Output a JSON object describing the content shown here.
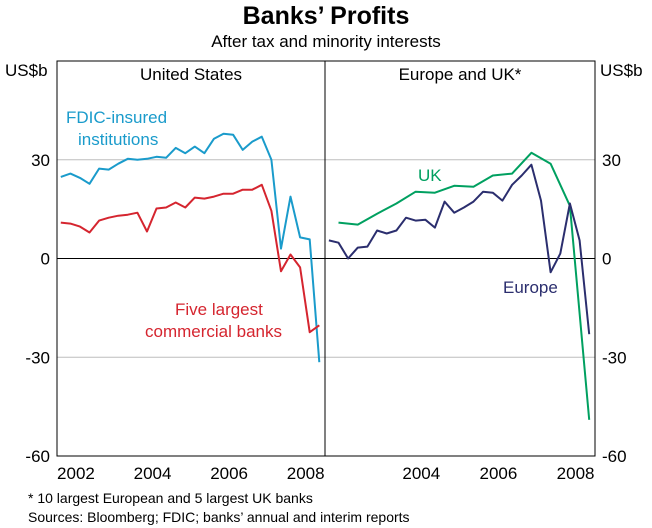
{
  "chart_data": {
    "type": "line",
    "title": "Banks’ Profits",
    "subtitle": "After tax and minority interests",
    "ylabel": "US$b",
    "ylim": [
      -60,
      60
    ],
    "yticks": [
      -60,
      -30,
      0,
      30
    ],
    "xlim": [
      2001.4,
      2008.4
    ],
    "grid": true,
    "panels": [
      {
        "title": "United States",
        "xticks": [
          2002,
          2004,
          2006,
          2008
        ],
        "series": [
          {
            "name": "FDIC-insured institutions",
            "label_lines": [
              "FDIC-insured",
              "institutions"
            ],
            "color": "#1a9bcb",
            "x_start": 2001.5,
            "x_step": 0.25,
            "values": [
              24.8,
              25.8,
              24.5,
              22.7,
              27.3,
              27,
              28.8,
              30.3,
              30,
              30.3,
              30.9,
              30.6,
              33.6,
              32,
              34,
              32,
              36.4,
              37.9,
              37.6,
              33,
              35.5,
              37,
              30,
              3,
              18.8,
              6.4,
              5.8,
              -31.5
            ]
          },
          {
            "name": "Five largest commercial banks",
            "label_lines": [
              "Five largest",
              "commercial banks"
            ],
            "color": "#d5252f",
            "x_start": 2001.5,
            "x_step": 0.25,
            "values": [
              10.9,
              10.6,
              9.7,
              7.9,
              11.5,
              12.4,
              13,
              13.3,
              13.9,
              8.2,
              15.2,
              15.5,
              17,
              15.5,
              18.5,
              18.2,
              18.8,
              19.7,
              19.7,
              20.9,
              20.9,
              22.4,
              14.5,
              -3.9,
              1.2,
              -2.7,
              -22.4,
              -20.3
            ]
          }
        ]
      },
      {
        "title": "Europe and UK*",
        "xticks": [
          2004,
          2006,
          2008
        ],
        "series": [
          {
            "name": "UK",
            "label_lines": [
              "UK"
            ],
            "color": "#00a060",
            "x_start": 2001.75,
            "x_step": 0.5,
            "values": [
              10.9,
              10.3,
              13.6,
              16.7,
              20.3,
              20,
              22.1,
              21.8,
              25.2,
              25.8,
              32.1,
              28.8,
              16,
              -49
            ]
          },
          {
            "name": "Europe",
            "label_lines": [
              "Europe"
            ],
            "color": "#2b2e6e",
            "x_start": 2001.5,
            "x_step": 0.25,
            "values": [
              5.5,
              4.8,
              0,
              3.3,
              3.6,
              8.5,
              7.6,
              8.5,
              12.4,
              11.5,
              11.8,
              9.4,
              17.3,
              13.9,
              15.5,
              17.3,
              20.3,
              20,
              17.6,
              22.4,
              25.2,
              28.5,
              17.6,
              -4.2,
              1.5,
              16.7,
              5.5,
              -23
            ]
          }
        ]
      }
    ],
    "footnotes": [
      "*  10 largest European and 5 largest UK banks",
      "Sources: Bloomberg; FDIC; banks’ annual and interim reports"
    ]
  }
}
